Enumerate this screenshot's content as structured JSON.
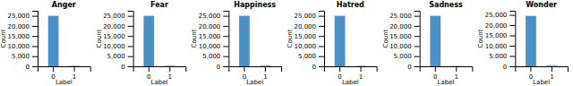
{
  "chart_data": [
    {
      "type": "bar",
      "title": "Anger",
      "xlabel": "Label",
      "ylabel": "Count",
      "categories": [
        "0",
        "1"
      ],
      "values": [
        25000,
        400
      ],
      "colors": [
        "#4a90c4",
        "#8ec8e8"
      ],
      "ylim": [
        0,
        27500
      ],
      "yticks": [
        0,
        {
          "value": 5000,
          "label": "5,000"
        },
        {
          "value": 10000,
          "label": "10,000"
        },
        {
          "value": 15000,
          "label": "15,000"
        },
        {
          "value": 20000,
          "label": "20,000"
        },
        {
          "value": 25000,
          "label": "25,000"
        }
      ]
    },
    {
      "type": "bar",
      "title": "Fear",
      "xlabel": "Label",
      "ylabel": "Count",
      "categories": [
        "0",
        "1"
      ],
      "values": [
        25000,
        500
      ],
      "colors": [
        "#4a90c4",
        "#8ec8e8"
      ],
      "ylim": [
        0,
        27500
      ],
      "yticks": [
        0,
        {
          "value": 5000,
          "label": "5,000"
        },
        {
          "value": 10000,
          "label": "10,000"
        },
        {
          "value": 15000,
          "label": "15,000"
        },
        {
          "value": 20000,
          "label": "20,000"
        },
        {
          "value": 25000,
          "label": "25,000"
        }
      ]
    },
    {
      "type": "bar",
      "title": "Happiness",
      "xlabel": "Label",
      "ylabel": "Count",
      "categories": [
        "0",
        "1"
      ],
      "values": [
        25000,
        600
      ],
      "colors": [
        "#4a90c4",
        "#8ec8e8"
      ],
      "ylim": [
        0,
        27500
      ],
      "yticks": [
        0,
        {
          "value": 5000,
          "label": "5,000"
        },
        {
          "value": 10000,
          "label": "10,000"
        },
        {
          "value": 15000,
          "label": "15,000"
        },
        {
          "value": 20000,
          "label": "20,000"
        },
        {
          "value": 25000,
          "label": "25,000"
        }
      ]
    },
    {
      "type": "bar",
      "title": "Hatred",
      "xlabel": "Label",
      "ylabel": "Count",
      "categories": [
        "0",
        "1"
      ],
      "values": [
        25000,
        350
      ],
      "colors": [
        "#4a90c4",
        "#8ec8e8"
      ],
      "ylim": [
        0,
        27500
      ],
      "yticks": [
        0,
        {
          "value": 5000,
          "label": "5,000"
        },
        {
          "value": 10000,
          "label": "10,000"
        },
        {
          "value": 15000,
          "label": "15,000"
        },
        {
          "value": 20000,
          "label": "20,000"
        },
        {
          "value": 25000,
          "label": "25,000"
        }
      ]
    },
    {
      "type": "bar",
      "title": "Sadness",
      "xlabel": "Label",
      "ylabel": "Count",
      "categories": [
        "0",
        "1"
      ],
      "values": [
        25000,
        300
      ],
      "colors": [
        "#4a90c4",
        "#8ec8e8"
      ],
      "ylim": [
        0,
        27500
      ],
      "yticks": [
        0,
        {
          "value": 5000,
          "label": "5,000"
        },
        {
          "value": 10000,
          "label": "10,000"
        },
        {
          "value": 15000,
          "label": "15,000"
        },
        {
          "value": 20000,
          "label": "20,000"
        },
        {
          "value": 25000,
          "label": "25,000"
        }
      ]
    },
    {
      "type": "bar",
      "title": "Wonder",
      "xlabel": "Label",
      "ylabel": "Count",
      "categories": [
        "0",
        "1"
      ],
      "values": [
        24500,
        700
      ],
      "colors": [
        "#4a90c4",
        "#8ec8e8"
      ],
      "ylim": [
        0,
        27000
      ],
      "yticks": [
        0,
        {
          "value": 5000,
          "label": "5,000"
        },
        {
          "value": 10000,
          "label": "10,000"
        },
        {
          "value": 15000,
          "label": "15,000"
        },
        {
          "value": 20000,
          "label": "20,000"
        },
        {
          "value": 25000,
          "label": "25,000"
        }
      ]
    }
  ]
}
